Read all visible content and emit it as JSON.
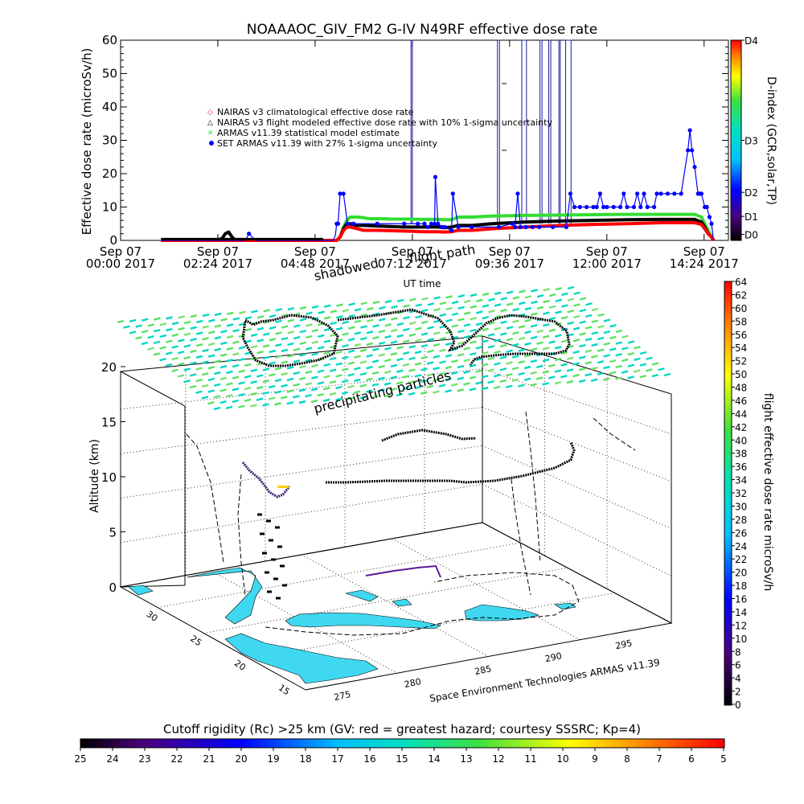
{
  "chart_data": [
    {
      "type": "line",
      "title": "NOAAAOC_GIV_FM2 G-IV   N49RF  effective dose rate",
      "ylabel": "Effective dose rate  (microSv/h)",
      "xlabel": "UT time",
      "ylim": [
        0,
        60
      ],
      "yticks": [
        "0",
        "10",
        "20",
        "30",
        "40",
        "50",
        "60"
      ],
      "xlim": [
        0,
        900
      ],
      "xticks": [
        {
          "line1": "Sep 07",
          "line2": "00:00 2017",
          "t": 0
        },
        {
          "line1": "Sep 07",
          "line2": "02:24 2017",
          "t": 144
        },
        {
          "line1": "Sep 07",
          "line2": "04:48 2017",
          "t": 288
        },
        {
          "line1": "Sep 07",
          "line2": "07:12 2017",
          "t": 432
        },
        {
          "line1": "Sep 07",
          "line2": "09:36 2017",
          "t": 576
        },
        {
          "line1": "Sep 07",
          "line2": "12:00 2017",
          "t": 720
        },
        {
          "line1": "Sep 07",
          "line2": "14:24 2017",
          "t": 864
        }
      ],
      "right_axis": {
        "label": "D-index (GCR,solar,TP)",
        "ticks": [
          "D0",
          "D1",
          "D2",
          "D3",
          "D4"
        ],
        "tick_fracs": [
          0.03,
          0.12,
          0.24,
          0.5,
          1.0
        ]
      },
      "legend": [
        {
          "name": "NAIRAS v3 climatological effective dose rate",
          "color": "#ff0000",
          "marker": "diamond"
        },
        {
          "name": "NAIRAS v3 flight modeled effective dose rate with 10% 1-sigma uncertainty",
          "color": "#000000",
          "marker": "triangle"
        },
        {
          "name": "ARMAS v11.39 statistical model estimate",
          "color": "#33dd33",
          "marker": "x"
        },
        {
          "name": "SET ARMAS v11.39 with 27% 1-sigma uncertainty",
          "color": "#0000ff",
          "marker": "dot"
        }
      ],
      "series": [
        {
          "name": "SET ARMAS v11.39 with 27% 1-sigma uncertainty",
          "color": "#0000ff",
          "x": [
            60,
            120,
            185,
            190,
            200,
            250,
            300,
            315,
            318,
            320,
            322,
            325,
            330,
            336,
            345,
            380,
            420,
            440,
            450,
            455,
            460,
            465,
            466,
            470,
            476,
            480,
            490,
            492,
            500,
            520,
            560,
            580,
            584,
            588,
            592,
            600,
            610,
            620,
            640,
            660,
            666,
            672,
            680,
            690,
            700,
            705,
            710,
            715,
            720,
            730,
            740,
            745,
            750,
            760,
            765,
            770,
            775,
            780,
            790,
            794,
            800,
            810,
            820,
            830,
            840,
            843,
            846,
            850,
            855,
            858,
            860,
            865,
            868,
            872,
            875,
            878
          ],
          "y": [
            0,
            0,
            0,
            2,
            0,
            0,
            0,
            0,
            1.5,
            5,
            5,
            14,
            14,
            5,
            5,
            5,
            5,
            5,
            5,
            4,
            5,
            5,
            19,
            5,
            4,
            4,
            3,
            14,
            4,
            4,
            4,
            5,
            4,
            14,
            4,
            4,
            4,
            4,
            4,
            4,
            14,
            10,
            10,
            10,
            10,
            10,
            14,
            10,
            10,
            10,
            10,
            14,
            10,
            10,
            14,
            10,
            14,
            10,
            10,
            14,
            14,
            14,
            14,
            14,
            27,
            33,
            27,
            22,
            14,
            14,
            14,
            10,
            10,
            7,
            5,
            0
          ]
        },
        {
          "name": "ARMAS v11.39 statistical model estimate",
          "color": "#33dd33",
          "x": [
            60,
            300,
            315,
            320,
            325,
            330,
            335,
            340,
            350,
            360,
            365,
            370,
            380,
            390,
            400,
            420,
            450,
            470,
            480,
            490,
            500,
            520,
            550,
            600,
            650,
            700,
            750,
            800,
            850,
            860,
            865,
            870,
            875,
            878
          ],
          "y": [
            0,
            0,
            0,
            0,
            1,
            4,
            6,
            7,
            7,
            6.8,
            6.6,
            6.5,
            6.5,
            6.5,
            6.4,
            6.4,
            6.3,
            6.3,
            6.2,
            6.2,
            7,
            7,
            7.3,
            7.5,
            7.6,
            7.7,
            7.8,
            7.8,
            7.8,
            7,
            5,
            3,
            1,
            0
          ]
        },
        {
          "name": "NAIRAS v3 flight modeled effective dose rate with 10% 1-sigma uncertainty",
          "color": "#000000",
          "x": [
            60,
            140,
            150,
            155,
            160,
            165,
            170,
            300,
            315,
            320,
            325,
            330,
            335,
            340,
            350,
            360,
            380,
            420,
            450,
            470,
            480,
            490,
            500,
            520,
            550,
            600,
            650,
            700,
            750,
            800,
            850,
            860,
            865,
            870,
            875,
            878
          ],
          "y": [
            0,
            0,
            0.5,
            2,
            2.5,
            1,
            0,
            0,
            0,
            0,
            1,
            3.5,
            5,
            5,
            4.5,
            4.5,
            4.3,
            4,
            4,
            4,
            3.8,
            4,
            4.5,
            4.5,
            5,
            5.5,
            5.8,
            6,
            6.2,
            6.3,
            6.3,
            5.5,
            4,
            2,
            1,
            0
          ]
        },
        {
          "name": "NAIRAS v3 climatological effective dose rate",
          "color": "#ff0000",
          "x": [
            60,
            300,
            315,
            320,
            325,
            330,
            335,
            340,
            350,
            360,
            380,
            420,
            450,
            470,
            480,
            490,
            500,
            520,
            550,
            600,
            650,
            700,
            750,
            800,
            850,
            860,
            865,
            870,
            875,
            878
          ],
          "y": [
            0,
            0,
            0,
            0,
            1,
            3,
            4,
            4,
            3.5,
            3,
            3,
            2.8,
            2.6,
            2.6,
            2.5,
            2.6,
            3,
            3,
            3.5,
            4,
            4.5,
            4.8,
            5,
            5.3,
            5.3,
            4.8,
            3.5,
            2,
            1,
            0
          ]
        }
      ],
      "spikes_x": [
        430,
        432,
        558,
        561,
        594,
        601,
        621,
        624,
        634,
        637,
        649,
        651,
        659,
        667
      ]
    },
    {
      "type": "scatter",
      "xlabel": "UT time",
      "ylabel": "Altitude (km)",
      "zticks": [
        "0",
        "5",
        "10",
        "15",
        "20"
      ],
      "xticks": [
        "275",
        "280",
        "285",
        "290",
        "295"
      ],
      "yticks": [
        "15",
        "20",
        "25",
        "30"
      ],
      "annotations": [
        "shadowed",
        "flight path",
        "precipitating particles"
      ],
      "right_colorbar": {
        "label": "flight effective dose rate microSv/h",
        "ticks": [
          "0",
          "2",
          "4",
          "6",
          "8",
          "10",
          "12",
          "14",
          "16",
          "18",
          "20",
          "22",
          "24",
          "26",
          "28",
          "30",
          "32",
          "34",
          "36",
          "38",
          "40",
          "42",
          "44",
          "46",
          "48",
          "50",
          "52",
          "54",
          "56",
          "58",
          "60",
          "62",
          "64"
        ]
      },
      "bottom_colorbar": {
        "label": "Cutoff rigidity (Rc) >25 km (GV: red = greatest hazard; courtesy SSSRC; Kp=4)",
        "ticks": [
          "25",
          "24",
          "23",
          "22",
          "21",
          "20",
          "19",
          "18",
          "17",
          "16",
          "15",
          "14",
          "13",
          "12",
          "11",
          "10",
          "9",
          "8",
          "7",
          "6",
          "5"
        ]
      },
      "credit": "Space Environment Technologies ARMAS v11.39"
    }
  ],
  "colors": {
    "black": "#000000",
    "blue": "#0000ff",
    "green": "#33dd33",
    "red": "#ff0000",
    "land_cyan": "#3fd8f0",
    "grid_teal": "#00d7c0",
    "grid_green": "#5be060"
  }
}
